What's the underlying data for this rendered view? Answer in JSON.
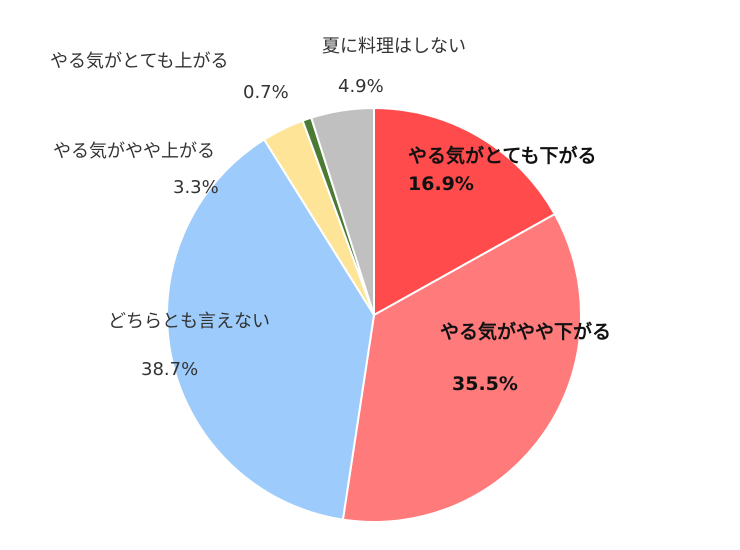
{
  "chart_data": {
    "type": "pie",
    "title": "",
    "start": "12 o'clock, clockwise",
    "slices": [
      {
        "label": "やる気がとても下がる",
        "value": 16.9,
        "value_label": "16.9%",
        "color": "#ff4b4b"
      },
      {
        "label": "やる気がやや下がる",
        "value": 35.5,
        "value_label": "35.5%",
        "color": "#ff7a7a"
      },
      {
        "label": "どちらとも言えない",
        "value": 38.7,
        "value_label": "38.7%",
        "color": "#9dcbfb"
      },
      {
        "label": "やる気がやや上がる",
        "value": 3.3,
        "value_label": "3.3%",
        "color": "#fde497"
      },
      {
        "label": "やる気がとても上がる",
        "value": 0.7,
        "value_label": "0.7%",
        "color": "#4b7a34"
      },
      {
        "label": "夏に料理はしない",
        "value": 4.9,
        "value_label": "4.9%",
        "color": "#c0c0c0"
      }
    ]
  }
}
